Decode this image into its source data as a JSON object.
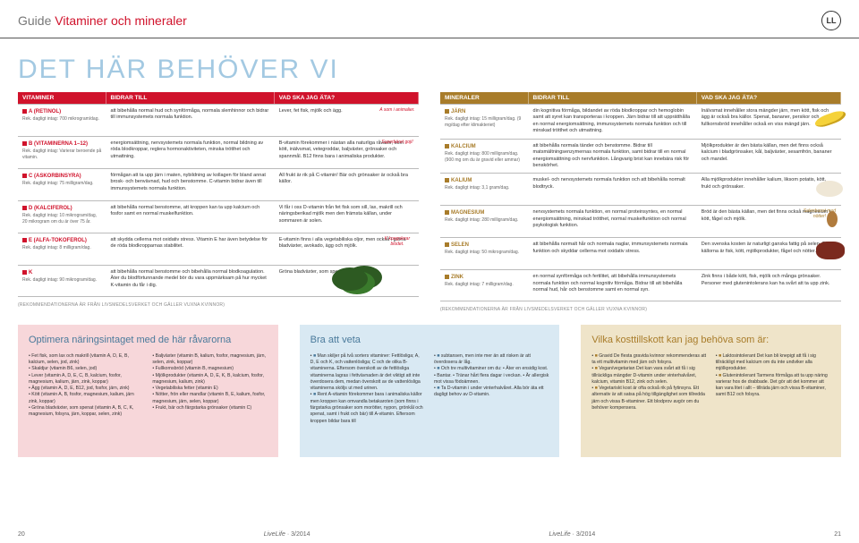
{
  "header": {
    "guide": "Guide",
    "subject": "Vitaminer och mineraler",
    "badge": "LL"
  },
  "big_title": "DET HÄR BEHÖVER VI",
  "cols": {
    "left_name": "VITAMINER",
    "right_name": "MINERALER",
    "bidrar": "BIDRAR TILL",
    "vad": "VAD SKA JAG ÄTA?"
  },
  "vitamins": [
    {
      "name": "A (RETINOL)",
      "intake": "Rek. dagligt intag: 700 mikrogram/dag.",
      "bidrar": "att bibehålla normal hud och synförmåga, normala slemhinnor och bidrar till immunsystemets normala funktion.",
      "vad": "Lever, fet fisk, mjölk och ägg.",
      "note": "A som i animalier."
    },
    {
      "name": "B (VITAMINERNA 1–12)",
      "intake": "Rek. dagligt intag: Varierar beroende på vitamin.",
      "bidrar": "energiomsättning, nervsystemets normala funktion, normal bildning av röda blodkroppar, reglera hormonaktiviteten, minska trötthet och utmattning.",
      "vad": "B-vitamin förekommer i nästan alla naturliga råvaror, som kött, inälvsmat, vetegroddar, baljväxter, grönsaker och spannmål. B12 finns bara i animaliska produkter.",
      "note": "Superbäret goji!"
    },
    {
      "name": "C (ASKORBINSYRA)",
      "intake": "Rek. dagligt intag: 75 milligram/dag.",
      "bidrar": "förmågan att ta upp järn i maten, nybildning av kollagen för bland annat brosk- och benvävnad, hud och benstomme. C-vitamin bidrar även till immunsystemets normala funktion.",
      "vad": "All frukt är rik på C-vitamin! Bär och grönsaker är också bra källor."
    },
    {
      "name": "D (KALCIFEROL)",
      "intake": "Rek. dagligt intag: 10 mikrogram/dag, 20 mikrogram om du är över 75 år.",
      "bidrar": "att bibehålla normal benstomme, att kroppen kan ta upp kalcium och fosfor samt en normal muskelfunktion.",
      "vad": "Vi får i oss D-vitamin från fet fisk som sill, lax, makrill och näringsberikad mjölk men den främsta källan, under sommaren är solen."
    },
    {
      "name": "E (ALFA-TOKOFEROL)",
      "intake": "Rek. dagligt intag: 8 milligram/dag.",
      "bidrar": "att skydda cellerna mot oxidativ stress. Vitamin E har även betydelse för de röda blodkropparnas stabilitet.",
      "vad": "E-vitamin finns i alla vegetabiliska oljor, men också i gröna bladväxter, avokado, ägg och mjölk.",
      "note": "K koagulerar blodet."
    },
    {
      "name": "K",
      "intake": "Rek. dagligt intag: 90 mikrogram/dag.",
      "bidrar": "att bibehålla normal benstomme och bibehålla normal blodkoagulation. Äter du blodförtunnande medel bör du vara uppmärksam på hur mycket K-vitamin du får i dig.",
      "vad": "Gröna bladväxter, som spenat, är bra källor."
    }
  ],
  "minerals": [
    {
      "name": "JÄRN",
      "intake": "Rek. dagligt intag: 15 milligram/dag. (9 mg/dag efter klimakteriet)",
      "bidrar": "din kognitiva förmåga, bildandet av röda blodkroppar och hemoglobin samt att syret kan transporteras i kroppen. Järn bidrar till att upprätthålla en normal energiomsättning, immunsystemets normala funktion och till minskad trötthet och utmattning.",
      "vad": "Inälvsmat innehåller stora mängder järn, men kött, fisk och ägg är också bra källor. Spenat, bananer, persikor och fullkornsbröd innehåller också en viss mängd järn.",
      "img": "banana"
    },
    {
      "name": "KALCIUM",
      "intake": "Rek. dagligt intag: 800 milligram/dag. (900 mg om du är gravid eller ammar)",
      "bidrar": "att bibehålla normala tänder och benstomme. Bidrar till matsmältningsenzymernas normala funktion, samt bidrar till en normal energiomsättning och nervfunktion. Långvarig brist kan innebära risk för benskörhet.",
      "vad": "Mjölkprodukter är den bästa källan, men det finns också kalcium i bladgrönsaker, kål, baljväxter, sesamfrön, bananer och mandel."
    },
    {
      "name": "KALIUM",
      "intake": "Rek. dagligt intag: 3,1 gram/dag.",
      "bidrar": "muskel- och nervsystemets normala funktion och att bibehålla normalt blodtryck.",
      "vad": "Alla mjölkprodukter innehåller kalium, liksom potatis, kött, frukt och grönsaker.",
      "img": "rice"
    },
    {
      "name": "MAGNESIUM",
      "intake": "Rek. dagligt intag: 280 milligram/dag.",
      "bidrar": "nervsystemets normala funktion, en normal proteinsyntes, en normal energiomsättning, minskad trötthet, normal muskelfunktion och normal psykologisk funktion.",
      "vad": "Bröd är den bästa källan, men det finns också magnesium i kött, fågel och mjölk.",
      "note": "Selenboost med nötter!",
      "img": "almond"
    },
    {
      "name": "SELEN",
      "intake": "Rek. dagligt intag: 50 mikrogram/dag.",
      "bidrar": "att bibehålla normalt hår och normala naglar, immunsystemets normala funktion och skyddar cellerna mot oxidativ stress.",
      "vad": "Den svenska kosten är naturligt ganska fattig på selen. Bästa källorna är fisk, kött, mjölkprodukter, fågel och nötter.",
      "img": "steak"
    },
    {
      "name": "ZINK",
      "intake": "Rek. dagligt intag: 7 milligram/dag.",
      "bidrar": "en normal synförmåga och fertilitet, att bibehålla immunsystemets normala funktion och normal kognitiv förmåga. Bidrar till att bibehålla normal hud, hår och benstomme samt en normal syn.",
      "vad": "Zink finns i både kött, fisk, mjölk och många grönsaker. Personer med glutenintolerans kan ha svårt att ta upp zink."
    }
  ],
  "reco": "(REKOMMENDATIONERNA ÄR FRÅN LIVSMEDELSVERKET OCH GÄLLER VUXNA KVINNOR)",
  "boxes": {
    "opt": {
      "title": "Optimera näringsintaget med de här råvarorna",
      "col1": [
        "Fet fisk, som lax och makrill (vitamin A, D, E, B, kalcium, selen, jod, zink)",
        "Skaldjur (vitamin B6, selen, jod)",
        "Lever (vitamin A, D, E, C, B, kalcium, fosfor, magnesium, kalium, järn, zink, koppar)",
        "Ägg (vitamin A, D, E, B12, jod, fosfor, järn, zink)",
        "Kött (vitamin A, B, fosfor, magnesium, kalium, järn zink, koppar)",
        "Gröna bladväxter, som spenat (vitamin A, B, C, K, magnesium, folsyra, järn, koppar, selen, zink)"
      ],
      "col2": [
        "Baljväxter (vitamin B, kalium, fosfor, magnesium, järn, selen, zink, koppar)",
        "Fullkornsbröd (vitamin B, magnesium)",
        "Mjölkprodukter (vitamin A, D, E, K, B, kalcium, fosfor, magnesium, kalium, zink)",
        "Vegetabiliska fetter (vitamin E)",
        "Nötter, frön eller mandlar (vitamin B, E, kalium, fosfor, magnesium, järn, selen, koppar)",
        "Frukt, bär och färgstarka grönsaker (vitamin C)"
      ]
    },
    "bra": {
      "title": "Bra att veta",
      "items": [
        "Man skiljer på två sorters vitaminer: Fettlösliga; A, D, E och K, och vattenlösliga; C och de olika B-vitaminerna. Eftersom överskott av de fettlösliga vitaminerna lagras i fettvävnaden är det viktigt att inte överdosera dem, medan överskott av de vattenlösliga vitaminerna sköljs ut med urinen.",
        "Rent A-vitamin förekommer bara i animaliska källor men kroppen kan omvandla betakaroten (som finns i färgstarka grönsaker som morötter, nypon, grönkål och spenat, samt i frukt och bär) till A-vitamin. Eftersom kroppen bildar bara till"
      ],
      "items2": [
        "subtansen, men inte mer än att risken är att överdosera är låg.",
        "Och tre multivitaminer om du: • Äter en ensidig kost. • Bantar. • Tränar hårt flera dagar i veckan. • Är allergisk mot vissa födoämnen.",
        "Ta D-vitamin i under vinterhalvåret. Alla bör äta ett dagligt behov av D-vitamin."
      ]
    },
    "kost": {
      "title": "Vilka kosttillskott kan jag behöva som är:",
      "items": [
        "Gravid De flesta gravida kvinnor rekommenderas att ta ett multivitamin med järn och folsyra.",
        "Vegan/vegetarian Det kan vara svårt att få i sig tillräckliga mängder D-vitamin under vinterhalvåret, kalcium, vitamin B12, zink och selen.",
        "Vegetariskt kost är ofta också rik på fytinsyra. Ett alternativ är att satsa på hög tillgänglighet som tillredda järn och vissa B-vitaminer. Ett blodprov avgör om du behöver kompensera."
      ],
      "items2": [
        "Laktosintolerant Det kan bli knepigt att få i sig tillräckligt med kalcium om du inte undviker alla mjölkprodukter.",
        "Glutenintolerant Tarmens förmåga att ta upp näring varierar hos de drabbade. Det gör att det kommer att kan vara litet i allt – tillräda järn och vissa B-vitaminer, samt B12 och folsyra."
      ]
    }
  },
  "footer": {
    "left_page": "20",
    "right_page": "21",
    "mag": "LiveLife",
    "issue": "3/2014"
  }
}
